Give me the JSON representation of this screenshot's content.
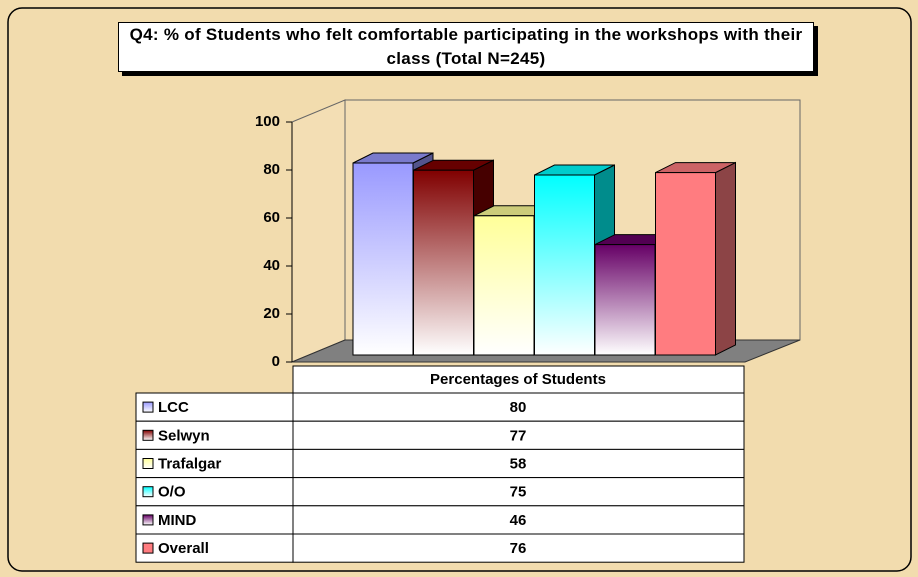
{
  "chart_data": {
    "type": "bar",
    "title": "Q4: % of Students who felt comfortable participating in the workshops with their class (Total N=245)",
    "categories": [
      "Percentages of Students"
    ],
    "series": [
      {
        "name": "LCC",
        "color": "#9999ff",
        "values": [
          80
        ]
      },
      {
        "name": "Selwyn",
        "color": "#800000",
        "values": [
          77
        ]
      },
      {
        "name": "Trafalgar",
        "color": "#ffff99",
        "values": [
          58
        ]
      },
      {
        "name": "O/O",
        "color": "#00ffff",
        "values": [
          75
        ]
      },
      {
        "name": "MIND",
        "color": "#660066",
        "values": [
          46
        ]
      },
      {
        "name": "Overall",
        "color": "#ff7c80",
        "values": [
          76
        ]
      }
    ],
    "ylim": [
      0,
      100
    ],
    "yticks": [
      0,
      20,
      40,
      60,
      80,
      100
    ],
    "grid": false
  }
}
